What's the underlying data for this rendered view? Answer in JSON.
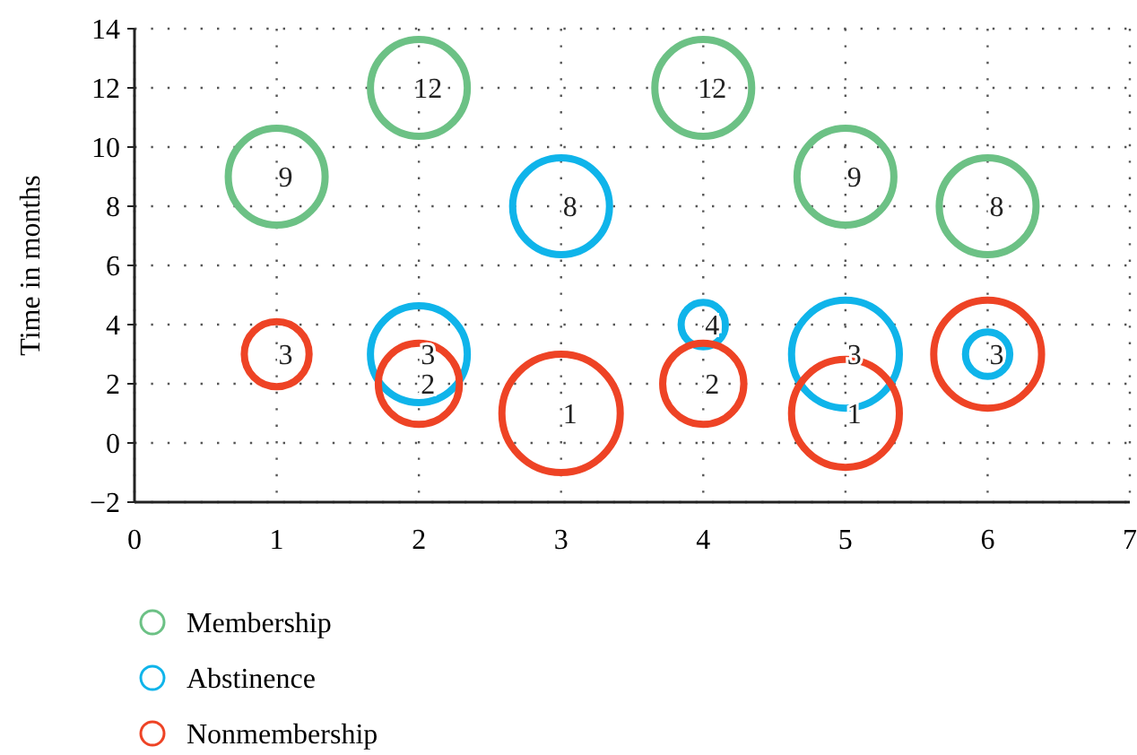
{
  "chart_data": {
    "type": "bubble",
    "ylabel": "Time in months",
    "xlim": [
      0,
      7
    ],
    "xticks": [
      0,
      1,
      2,
      3,
      4,
      5,
      6,
      7
    ],
    "ylim": [
      -2,
      14
    ],
    "yticks": [
      {
        "value": -2,
        "label": "−2"
      },
      0,
      2,
      4,
      6,
      8,
      10,
      12,
      14
    ],
    "grid": true,
    "legend": "bottom",
    "marker": "circle",
    "series": [
      {
        "name": "Membership",
        "color": "#6cc185",
        "x": [
          1,
          2,
          4,
          5,
          6
        ],
        "values": [
          9,
          12,
          12,
          9,
          8
        ],
        "sizes": [
          0.67,
          0.67,
          0.67,
          0.67,
          0.67
        ],
        "value_labels": [
          "9",
          "12",
          "12",
          "9",
          "8"
        ]
      },
      {
        "name": "Abstinence",
        "color": "#0fb4ea",
        "x": [
          2,
          3,
          4,
          5,
          6
        ],
        "values": [
          3,
          8,
          4,
          3,
          3
        ],
        "sizes": [
          0.67,
          0.67,
          0.14,
          0.83,
          0.14
        ],
        "value_labels": [
          "3",
          "8",
          "4",
          "3",
          null
        ]
      },
      {
        "name": "Nonmembership",
        "color": "#ee4325",
        "x": [
          1,
          2,
          3,
          4,
          5,
          6
        ],
        "values": [
          3,
          2,
          1,
          2,
          1,
          3
        ],
        "sizes": [
          0.3,
          0.47,
          1,
          0.47,
          0.83,
          0.83
        ],
        "value_labels": [
          "3",
          "2",
          "1",
          "2",
          "1",
          "3"
        ]
      }
    ]
  }
}
